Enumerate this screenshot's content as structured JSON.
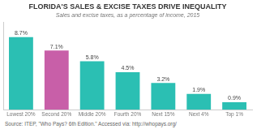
{
  "chart_data": {
    "type": "bar",
    "title": "FLORIDA'S SALES & EXCISE TAXES DRIVE INEQUALITY",
    "subtitle": "Sales and excise taxes, as a percentage of income, 2015",
    "annotations": [
      "Source: ITEP, \"Who Pays? 6th Edition.\" Accessed via: http://whopays.org/"
    ],
    "categories": [
      "Lowest 20%",
      "Second 20%",
      "Middle 20%",
      "Fourth 20%",
      "Next 15%",
      "Next 4%",
      "Top 1%"
    ],
    "values": [
      8.7,
      7.1,
      5.8,
      4.5,
      3.2,
      1.9,
      0.9
    ],
    "value_labels": [
      "8.7%",
      "7.1%",
      "5.8%",
      "4.5%",
      "3.2%",
      "1.9%",
      "0.9%"
    ],
    "colors": [
      "#2bbfb3",
      "#c85fa8",
      "#2bbfb3",
      "#2bbfb3",
      "#2bbfb3",
      "#2bbfb3",
      "#2bbfb3"
    ],
    "ylim": [
      0,
      10.5
    ],
    "yticks": [],
    "tick_labels": "x",
    "grid": false,
    "data_labels": true
  }
}
